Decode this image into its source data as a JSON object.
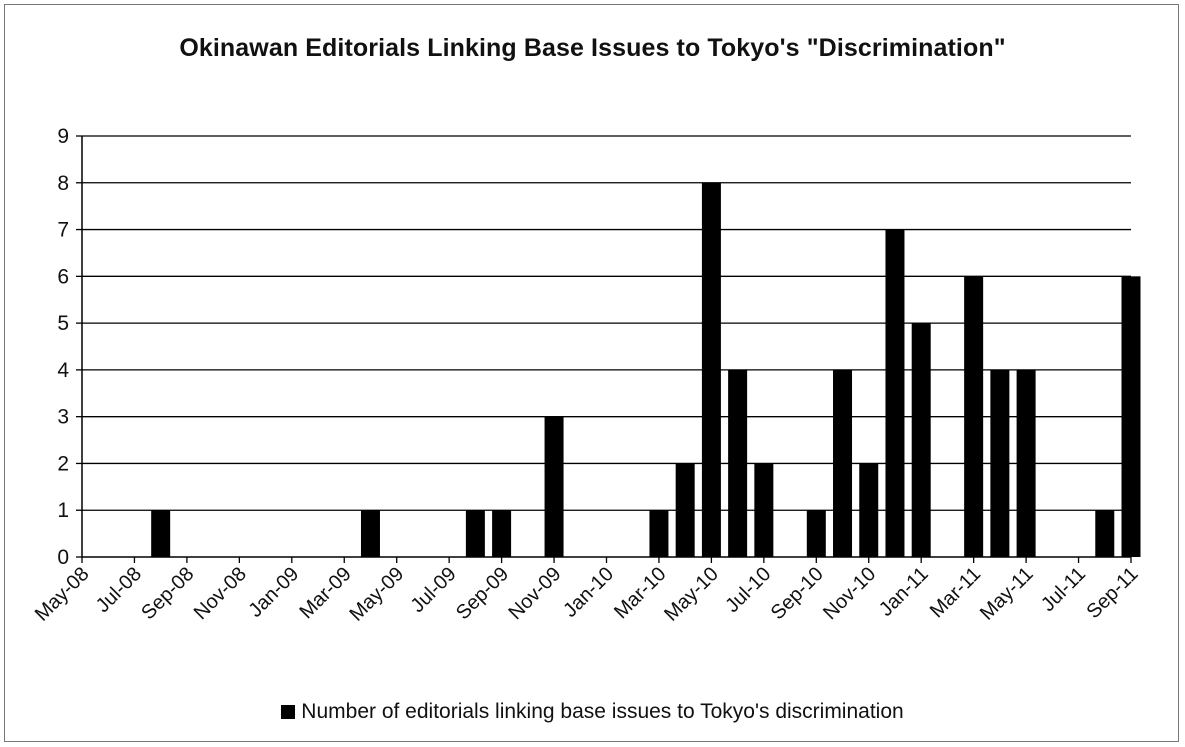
{
  "chart_data": {
    "type": "bar",
    "title": "Okinawan Editorials Linking Base Issues to Tokyo's \"Discrimination\"",
    "xlabel": "",
    "ylabel": "",
    "ylim": [
      0,
      9
    ],
    "yticks": [
      0,
      1,
      2,
      3,
      4,
      5,
      6,
      7,
      8,
      9
    ],
    "grid": true,
    "legend_position": "bottom",
    "x_tick_labels": [
      "May-08",
      "Jul-08",
      "Sep-08",
      "Nov-08",
      "Jan-09",
      "Mar-09",
      "May-09",
      "Jul-09",
      "Sep-09",
      "Nov-09",
      "Jan-10",
      "Mar-10",
      "May-10",
      "Jul-10",
      "Sep-10",
      "Nov-10",
      "Jan-11",
      "Mar-11",
      "May-11",
      "Jul-11",
      "Sep-11"
    ],
    "x_range": [
      "2008-05-01",
      "2011-09-01"
    ],
    "bar_color": "#000000",
    "series": [
      {
        "name": "Number of editorials linking base issues to Tokyo's discrimination",
        "points": [
          {
            "x": "2008-08-01",
            "y": 1
          },
          {
            "x": "2009-04-01",
            "y": 1
          },
          {
            "x": "2009-08-01",
            "y": 1
          },
          {
            "x": "2009-09-01",
            "y": 1
          },
          {
            "x": "2009-11-01",
            "y": 3
          },
          {
            "x": "2010-03-01",
            "y": 1
          },
          {
            "x": "2010-04-01",
            "y": 2
          },
          {
            "x": "2010-05-01",
            "y": 8
          },
          {
            "x": "2010-06-01",
            "y": 4
          },
          {
            "x": "2010-07-01",
            "y": 2
          },
          {
            "x": "2010-09-01",
            "y": 1
          },
          {
            "x": "2010-10-01",
            "y": 4
          },
          {
            "x": "2010-11-01",
            "y": 2
          },
          {
            "x": "2010-12-01",
            "y": 7
          },
          {
            "x": "2011-01-01",
            "y": 5
          },
          {
            "x": "2011-03-01",
            "y": 6
          },
          {
            "x": "2011-04-01",
            "y": 4
          },
          {
            "x": "2011-05-01",
            "y": 4
          },
          {
            "x": "2011-08-01",
            "y": 1
          },
          {
            "x": "2011-09-01",
            "y": 6
          }
        ]
      }
    ]
  }
}
